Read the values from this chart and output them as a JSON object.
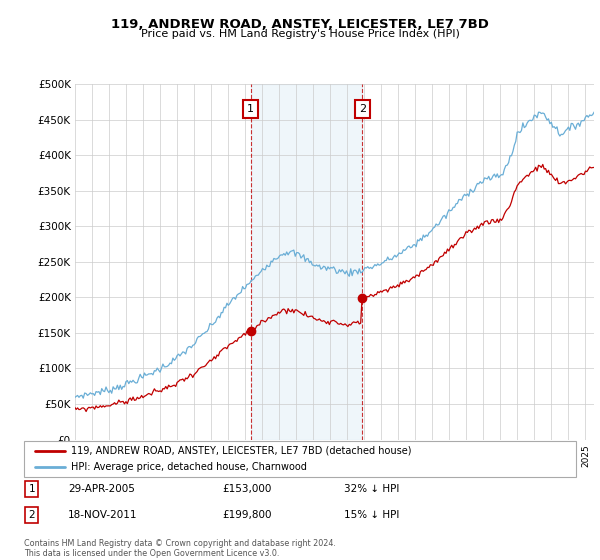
{
  "title": "119, ANDREW ROAD, ANSTEY, LEICESTER, LE7 7BD",
  "subtitle": "Price paid vs. HM Land Registry's House Price Index (HPI)",
  "ylim": [
    0,
    500000
  ],
  "yticks": [
    0,
    50000,
    100000,
    150000,
    200000,
    250000,
    300000,
    350000,
    400000,
    450000,
    500000
  ],
  "ytick_labels": [
    "£0",
    "£50K",
    "£100K",
    "£150K",
    "£200K",
    "£250K",
    "£300K",
    "£350K",
    "£400K",
    "£450K",
    "£500K"
  ],
  "hpi_color": "#6aaed6",
  "house_color": "#c00000",
  "transaction1_x": 2005.33,
  "transaction1_y": 153000,
  "transaction2_x": 2011.89,
  "transaction2_y": 199800,
  "legend_house": "119, ANDREW ROAD, ANSTEY, LEICESTER, LE7 7BD (detached house)",
  "legend_hpi": "HPI: Average price, detached house, Charnwood",
  "ann1_date": "29-APR-2005",
  "ann1_price": "£153,000",
  "ann1_pct": "32% ↓ HPI",
  "ann2_date": "18-NOV-2011",
  "ann2_price": "£199,800",
  "ann2_pct": "15% ↓ HPI",
  "footer": "Contains HM Land Registry data © Crown copyright and database right 2024.\nThis data is licensed under the Open Government Licence v3.0.",
  "grid_color": "#cccccc",
  "xmin": 1995,
  "xmax": 2025.5
}
